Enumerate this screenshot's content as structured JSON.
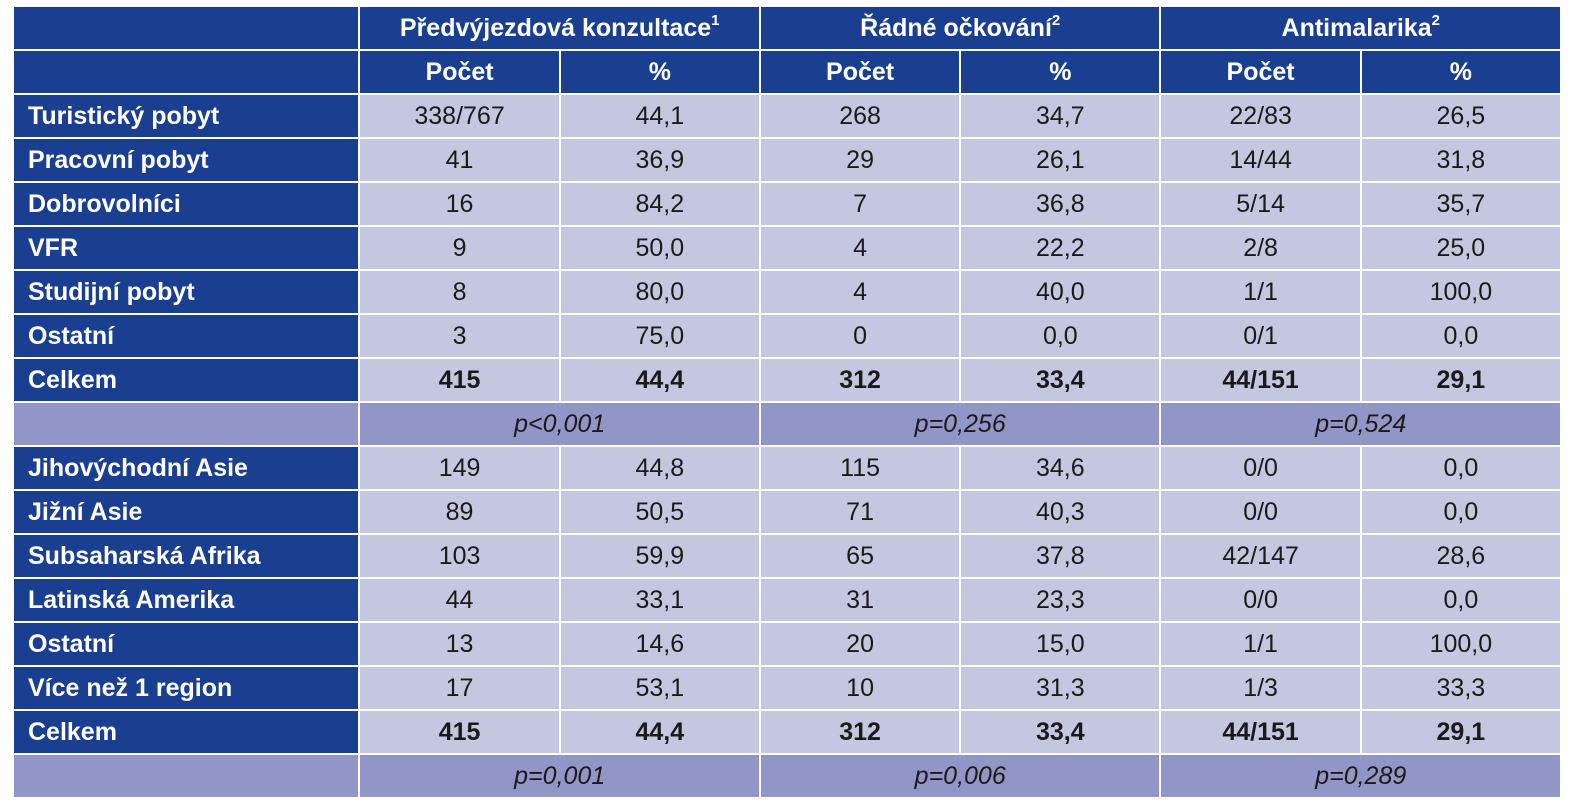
{
  "colors": {
    "header_bg": "#1a3f91",
    "cell_bg": "#c5c7e1",
    "pvalue_bg": "#9196c6"
  },
  "header": {
    "groups": [
      {
        "label": "Předvýjezdová konzultace",
        "sup": "1"
      },
      {
        "label": "Řádné očkování",
        "sup": "2"
      },
      {
        "label": "Antimalarika",
        "sup": "2"
      }
    ],
    "subcols": [
      "Počet",
      "%",
      "Počet",
      "%",
      "Počet",
      "%"
    ]
  },
  "section1": {
    "rows": [
      {
        "label": "Turistický pobyt",
        "values": [
          "338/767",
          "44,1",
          "268",
          "34,7",
          "22/83",
          "26,5"
        ]
      },
      {
        "label": "Pracovní pobyt",
        "values": [
          "41",
          "36,9",
          "29",
          "26,1",
          "14/44",
          "31,8"
        ]
      },
      {
        "label": "Dobrovolníci",
        "values": [
          "16",
          "84,2",
          "7",
          "36,8",
          "5/14",
          "35,7"
        ]
      },
      {
        "label": "VFR",
        "values": [
          "9",
          "50,0",
          "4",
          "22,2",
          "2/8",
          "25,0"
        ]
      },
      {
        "label": "Studijní pobyt",
        "values": [
          "8",
          "80,0",
          "4",
          "40,0",
          "1/1",
          "100,0"
        ]
      },
      {
        "label": "Ostatní",
        "values": [
          "3",
          "75,0",
          "0",
          "0,0",
          "0/1",
          "0,0"
        ]
      }
    ],
    "total": {
      "label": "Celkem",
      "values": [
        "415",
        "44,4",
        "312",
        "33,4",
        "44/151",
        "29,1"
      ]
    },
    "pvalues": [
      "p<0,001",
      "p=0,256",
      "p=0,524"
    ]
  },
  "section2": {
    "rows": [
      {
        "label": "Jihovýchodní Asie",
        "values": [
          "149",
          "44,8",
          "115",
          "34,6",
          "0/0",
          "0,0"
        ]
      },
      {
        "label": "Jižní Asie",
        "values": [
          "89",
          "50,5",
          "71",
          "40,3",
          "0/0",
          "0,0"
        ]
      },
      {
        "label": "Subsaharská Afrika",
        "values": [
          "103",
          "59,9",
          "65",
          "37,8",
          "42/147",
          "28,6"
        ]
      },
      {
        "label": "Latinská Amerika",
        "values": [
          "44",
          "33,1",
          "31",
          "23,3",
          "0/0",
          "0,0"
        ]
      },
      {
        "label": "Ostatní",
        "values": [
          "13",
          "14,6",
          "20",
          "15,0",
          "1/1",
          "100,0"
        ]
      },
      {
        "label": "Více než 1 region",
        "values": [
          "17",
          "53,1",
          "10",
          "31,3",
          "1/3",
          "33,3"
        ]
      }
    ],
    "total": {
      "label": "Celkem",
      "values": [
        "415",
        "44,4",
        "312",
        "33,4",
        "44/151",
        "29,1"
      ]
    },
    "pvalues": [
      "p=0,001",
      "p=0,006",
      "p=0,289"
    ]
  }
}
